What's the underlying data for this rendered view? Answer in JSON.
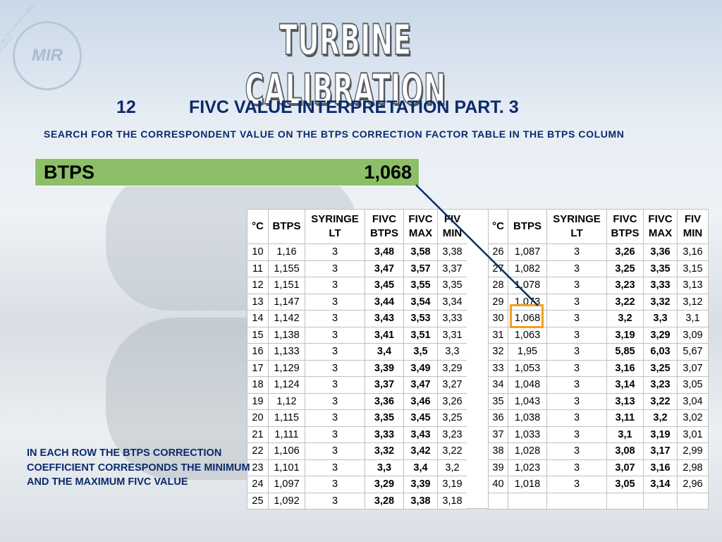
{
  "logo": {
    "text": "MIR",
    "ring": "MEDICAL INTERNATIONAL RESEARCH"
  },
  "title": "TURBINE CALIBRATION",
  "heading": {
    "number": "12",
    "text": "FIVC VALUE INTERPRETATION PART. 3"
  },
  "instruction": "SEARCH FOR THE CORRESPONDENT VALUE ON THE BTPS CORRECTION FACTOR TABLE IN THE BTPS COLUMN",
  "btps_box": {
    "label": "BTPS",
    "value": "1,068"
  },
  "table": {
    "headers": [
      "°C",
      "BTPS",
      "SYRINGE LT",
      "FIVC BTPS",
      "FIVC MAX",
      "FIV MIN"
    ],
    "left_rows": [
      [
        "10",
        "1,16",
        "3",
        "3,48",
        "3,58",
        "3,38"
      ],
      [
        "11",
        "1,155",
        "3",
        "3,47",
        "3,57",
        "3,37"
      ],
      [
        "12",
        "1,151",
        "3",
        "3,45",
        "3,55",
        "3,35"
      ],
      [
        "13",
        "1,147",
        "3",
        "3,44",
        "3,54",
        "3,34"
      ],
      [
        "14",
        "1,142",
        "3",
        "3,43",
        "3,53",
        "3,33"
      ],
      [
        "15",
        "1,138",
        "3",
        "3,41",
        "3,51",
        "3,31"
      ],
      [
        "16",
        "1,133",
        "3",
        "3,4",
        "3,5",
        "3,3"
      ],
      [
        "17",
        "1,129",
        "3",
        "3,39",
        "3,49",
        "3,29"
      ],
      [
        "18",
        "1,124",
        "3",
        "3,37",
        "3,47",
        "3,27"
      ],
      [
        "19",
        "1,12",
        "3",
        "3,36",
        "3,46",
        "3,26"
      ],
      [
        "20",
        "1,115",
        "3",
        "3,35",
        "3,45",
        "3,25"
      ],
      [
        "21",
        "1,111",
        "3",
        "3,33",
        "3,43",
        "3,23"
      ],
      [
        "22",
        "1,106",
        "3",
        "3,32",
        "3,42",
        "3,22"
      ],
      [
        "23",
        "1,101",
        "3",
        "3,3",
        "3,4",
        "3,2"
      ],
      [
        "24",
        "1,097",
        "3",
        "3,29",
        "3,39",
        "3,19"
      ],
      [
        "25",
        "1,092",
        "3",
        "3,28",
        "3,38",
        "3,18"
      ]
    ],
    "right_rows": [
      [
        "26",
        "1,087",
        "3",
        "3,26",
        "3,36",
        "3,16"
      ],
      [
        "27",
        "1,082",
        "3",
        "3,25",
        "3,35",
        "3,15"
      ],
      [
        "28",
        "1,078",
        "3",
        "3,23",
        "3,33",
        "3,13"
      ],
      [
        "29",
        "1,073",
        "3",
        "3,22",
        "3,32",
        "3,12"
      ],
      [
        "30",
        "1,068",
        "3",
        "3,2",
        "3,3",
        "3,1"
      ],
      [
        "31",
        "1,063",
        "3",
        "3,19",
        "3,29",
        "3,09"
      ],
      [
        "32",
        "1,95",
        "3",
        "5,85",
        "6,03",
        "5,67"
      ],
      [
        "33",
        "1,053",
        "3",
        "3,16",
        "3,25",
        "3,07"
      ],
      [
        "34",
        "1,048",
        "3",
        "3,14",
        "3,23",
        "3,05"
      ],
      [
        "35",
        "1,043",
        "3",
        "3,13",
        "3,22",
        "3,04"
      ],
      [
        "36",
        "1,038",
        "3",
        "3,11",
        "3,2",
        "3,02"
      ],
      [
        "37",
        "1,033",
        "3",
        "3,1",
        "3,19",
        "3,01"
      ],
      [
        "38",
        "1,028",
        "3",
        "3,08",
        "3,17",
        "2,99"
      ],
      [
        "39",
        "1,023",
        "3",
        "3,07",
        "3,16",
        "2,98"
      ],
      [
        "40",
        "1,018",
        "3",
        "3,05",
        "3,14",
        "2,96"
      ]
    ]
  },
  "note": "IN EACH ROW THE BTPS CORRECTION COEFFICIENT CORRESPONDS THE MINIMUM AND THE MAXIMUM FIVC VALUE"
}
